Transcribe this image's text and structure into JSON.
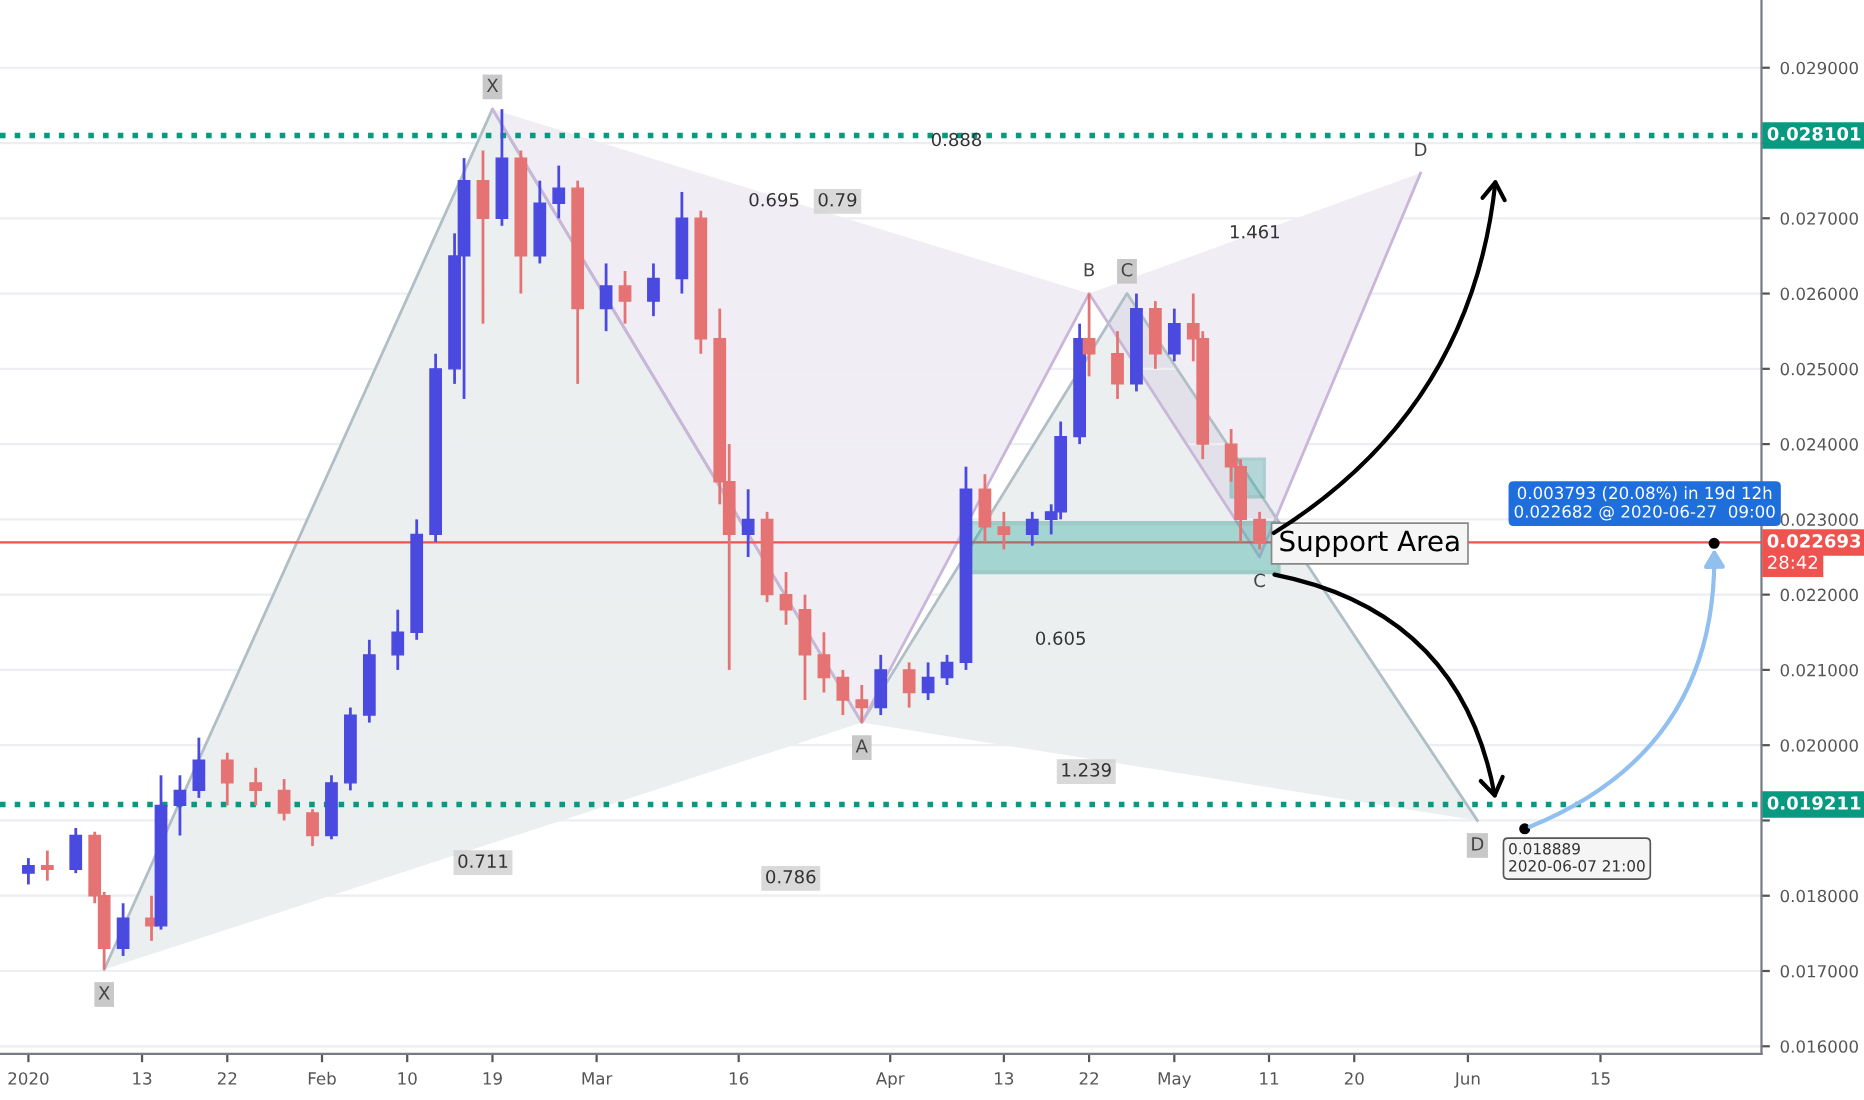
{
  "chart_data": {
    "type": "candlestick",
    "x": [
      "2020-01-01",
      "2020-01-03",
      "2020-01-06",
      "2020-01-08",
      "2020-01-09",
      "2020-01-11",
      "2020-01-14",
      "2020-01-15",
      "2020-01-17",
      "2020-01-19",
      "2020-01-22",
      "2020-01-25",
      "2020-01-28",
      "2020-01-31",
      "2020-02-02",
      "2020-02-04",
      "2020-02-06",
      "2020-02-09",
      "2020-02-11",
      "2020-02-13",
      "2020-02-15",
      "2020-02-16",
      "2020-02-18",
      "2020-02-20",
      "2020-02-22",
      "2020-02-24",
      "2020-02-26",
      "2020-02-28",
      "2020-03-02",
      "2020-03-04",
      "2020-03-07",
      "2020-03-10",
      "2020-03-12",
      "2020-03-14",
      "2020-03-15",
      "2020-03-17",
      "2020-03-19",
      "2020-03-21",
      "2020-03-23",
      "2020-03-25",
      "2020-03-27",
      "2020-03-29",
      "2020-03-31",
      "2020-04-03",
      "2020-04-05",
      "2020-04-07",
      "2020-04-09",
      "2020-04-11",
      "2020-04-13",
      "2020-04-16",
      "2020-04-18",
      "2020-04-19",
      "2020-04-21",
      "2020-04-22",
      "2020-04-25",
      "2020-04-27",
      "2020-04-29",
      "2020-05-01",
      "2020-05-03",
      "2020-05-04",
      "2020-05-07",
      "2020-05-08",
      "2020-05-10"
    ],
    "ohlc": [
      [
        0.0183,
        0.0185,
        0.01815,
        0.0184
      ],
      [
        0.0184,
        0.0186,
        0.0182,
        0.01835
      ],
      [
        0.01835,
        0.0189,
        0.0183,
        0.0188
      ],
      [
        0.0188,
        0.01885,
        0.0179,
        0.018
      ],
      [
        0.018,
        0.01805,
        0.01702,
        0.0173
      ],
      [
        0.0173,
        0.0179,
        0.0172,
        0.0177
      ],
      [
        0.0177,
        0.018,
        0.0174,
        0.0176
      ],
      [
        0.0176,
        0.0196,
        0.01755,
        0.0192
      ],
      [
        0.0192,
        0.0196,
        0.0188,
        0.0194
      ],
      [
        0.0194,
        0.0201,
        0.0193,
        0.0198
      ],
      [
        0.0198,
        0.0199,
        0.0192,
        0.0195
      ],
      [
        0.0195,
        0.0197,
        0.0192,
        0.0194
      ],
      [
        0.0194,
        0.01955,
        0.019,
        0.0191
      ],
      [
        0.0191,
        0.01915,
        0.01866,
        0.0188
      ],
      [
        0.0188,
        0.0196,
        0.01875,
        0.0195
      ],
      [
        0.0195,
        0.0205,
        0.0194,
        0.0204
      ],
      [
        0.0204,
        0.0214,
        0.0203,
        0.0212
      ],
      [
        0.0212,
        0.0218,
        0.021,
        0.0215
      ],
      [
        0.0215,
        0.023,
        0.0214,
        0.0228
      ],
      [
        0.0228,
        0.0252,
        0.0227,
        0.025
      ],
      [
        0.025,
        0.0268,
        0.0248,
        0.0265
      ],
      [
        0.0265,
        0.0278,
        0.0246,
        0.0275
      ],
      [
        0.0275,
        0.0279,
        0.0256,
        0.027
      ],
      [
        0.027,
        0.02845,
        0.0269,
        0.0278
      ],
      [
        0.0278,
        0.0279,
        0.026,
        0.0265
      ],
      [
        0.0265,
        0.0275,
        0.0264,
        0.0272
      ],
      [
        0.0272,
        0.0277,
        0.027,
        0.0274
      ],
      [
        0.0274,
        0.0275,
        0.0248,
        0.0258
      ],
      [
        0.0258,
        0.0264,
        0.0255,
        0.0261
      ],
      [
        0.0261,
        0.0263,
        0.0256,
        0.0259
      ],
      [
        0.0259,
        0.0264,
        0.0257,
        0.0262
      ],
      [
        0.0262,
        0.02735,
        0.026,
        0.027
      ],
      [
        0.027,
        0.0271,
        0.0252,
        0.0254
      ],
      [
        0.0254,
        0.0258,
        0.0232,
        0.0235
      ],
      [
        0.0235,
        0.024,
        0.021,
        0.0228
      ],
      [
        0.0228,
        0.0234,
        0.0225,
        0.023
      ],
      [
        0.023,
        0.0231,
        0.0219,
        0.022
      ],
      [
        0.022,
        0.0223,
        0.0216,
        0.0218
      ],
      [
        0.0218,
        0.022,
        0.0206,
        0.0212
      ],
      [
        0.0212,
        0.0215,
        0.0207,
        0.0209
      ],
      [
        0.0209,
        0.021,
        0.0204,
        0.0206
      ],
      [
        0.0206,
        0.0208,
        0.0203,
        0.0205
      ],
      [
        0.0205,
        0.0212,
        0.0204,
        0.021
      ],
      [
        0.021,
        0.0211,
        0.0205,
        0.0207
      ],
      [
        0.0207,
        0.0211,
        0.0206,
        0.0209
      ],
      [
        0.0209,
        0.0212,
        0.0208,
        0.0211
      ],
      [
        0.0211,
        0.0237,
        0.021,
        0.0234
      ],
      [
        0.0234,
        0.0236,
        0.0227,
        0.0229
      ],
      [
        0.0229,
        0.0231,
        0.0226,
        0.0228
      ],
      [
        0.0228,
        0.0231,
        0.02265,
        0.023
      ],
      [
        0.023,
        0.0232,
        0.0228,
        0.0231
      ],
      [
        0.0231,
        0.0243,
        0.023,
        0.0241
      ],
      [
        0.0241,
        0.0256,
        0.024,
        0.0254
      ],
      [
        0.0254,
        0.026,
        0.0249,
        0.0252
      ],
      [
        0.0252,
        0.0255,
        0.0246,
        0.0248
      ],
      [
        0.0248,
        0.026,
        0.0247,
        0.0258
      ],
      [
        0.0258,
        0.0259,
        0.025,
        0.0252
      ],
      [
        0.0252,
        0.0258,
        0.0251,
        0.0256
      ],
      [
        0.0256,
        0.026,
        0.0251,
        0.0254
      ],
      [
        0.0254,
        0.0255,
        0.0238,
        0.024
      ],
      [
        0.024,
        0.0242,
        0.0235,
        0.0237
      ],
      [
        0.0237,
        0.0238,
        0.0227,
        0.023
      ],
      [
        0.023,
        0.0231,
        0.0226,
        0.02269
      ]
    ],
    "colors": [
      "#4a4ae0",
      "#e57373",
      "#4a4ae0",
      "#e57373",
      "#e57373",
      "#4a4ae0",
      "#e57373",
      "#4a4ae0",
      "#4a4ae0",
      "#4a4ae0",
      "#e57373",
      "#e57373",
      "#e57373",
      "#e57373",
      "#4a4ae0",
      "#4a4ae0",
      "#4a4ae0",
      "#4a4ae0",
      "#4a4ae0",
      "#4a4ae0",
      "#4a4ae0",
      "#4a4ae0",
      "#e57373",
      "#4a4ae0",
      "#e57373",
      "#4a4ae0",
      "#4a4ae0",
      "#e57373",
      "#4a4ae0",
      "#e57373",
      "#4a4ae0",
      "#4a4ae0",
      "#e57373",
      "#e57373",
      "#e57373",
      "#4a4ae0",
      "#e57373",
      "#e57373",
      "#e57373",
      "#e57373",
      "#e57373",
      "#e57373",
      "#4a4ae0",
      "#e57373",
      "#4a4ae0",
      "#4a4ae0",
      "#4a4ae0",
      "#e57373",
      "#e57373",
      "#4a4ae0",
      "#4a4ae0",
      "#4a4ae0",
      "#4a4ae0",
      "#e57373",
      "#e57373",
      "#4a4ae0",
      "#e57373",
      "#4a4ae0",
      "#e57373",
      "#e57373",
      "#e57373",
      "#e57373",
      "#e57373"
    ],
    "series": [
      {
        "type": "line",
        "color": "#b0bec5",
        "x": [
          "2020-01-09",
          "2020-02-19",
          "2020-03-29",
          "2020-04-26",
          "2020-06-02"
        ],
        "values": [
          0.01702,
          0.02845,
          0.0203,
          0.026,
          0.019
        ],
        "value_labels": [
          "X",
          "X",
          "A",
          "C",
          "D"
        ]
      },
      {
        "type": "line",
        "color": "#c9b6d8",
        "x": [
          "2020-02-19",
          "2020-03-29",
          "2020-04-22",
          "2020-05-10",
          "2020-05-27"
        ],
        "values": [
          0.02845,
          0.0203,
          0.026,
          0.0225,
          0.0276
        ],
        "value_labels": [
          null,
          null,
          "B",
          "C",
          "D"
        ]
      }
    ],
    "xlim": [
      "2019-12-29",
      "2020-07-02"
    ],
    "xticks": [
      {
        "value": "2020-01-01",
        "label": "2020"
      },
      {
        "value": "2020-01-13",
        "label": "13"
      },
      {
        "value": "2020-01-22",
        "label": "22"
      },
      {
        "value": "2020-02-01",
        "label": "Feb"
      },
      {
        "value": "2020-02-10",
        "label": "10"
      },
      {
        "value": "2020-02-19",
        "label": "19"
      },
      {
        "value": "2020-03-01",
        "label": "Mar"
      },
      {
        "value": "2020-03-16",
        "label": "16"
      },
      {
        "value": "2020-04-01",
        "label": "Apr"
      },
      {
        "value": "2020-04-13",
        "label": "13"
      },
      {
        "value": "2020-04-22",
        "label": "22"
      },
      {
        "value": "2020-05-01",
        "label": "May"
      },
      {
        "value": "2020-05-11",
        "label": "11"
      },
      {
        "value": "2020-05-20",
        "label": "20"
      },
      {
        "value": "2020-06-01",
        "label": "Jun"
      },
      {
        "value": "2020-06-15",
        "label": "15"
      }
    ],
    "ylim": [
      0.0159,
      0.0299
    ],
    "yticks": [
      {
        "value": 0.016,
        "label": "0.016000"
      },
      {
        "value": 0.017,
        "label": "0.017000"
      },
      {
        "value": 0.018,
        "label": "0.018000"
      },
      {
        "value": 0.019,
        "label": null
      },
      {
        "value": 0.02,
        "label": "0.020000"
      },
      {
        "value": 0.021,
        "label": "0.021000"
      },
      {
        "value": 0.022,
        "label": "0.022000"
      },
      {
        "value": 0.023,
        "label": "0.023000"
      },
      {
        "value": 0.024,
        "label": "0.024000"
      },
      {
        "value": 0.025,
        "label": "0.025000"
      },
      {
        "value": 0.026,
        "label": "0.026000"
      },
      {
        "value": 0.027,
        "label": "0.027000"
      },
      {
        "value": 0.028,
        "label": null
      },
      {
        "value": 0.029,
        "label": "0.029000"
      }
    ],
    "grid": "y",
    "ref_lines": [
      {
        "axis": "y",
        "value": 0.028101,
        "label": "0.028101",
        "color": "#089981",
        "line_style": "dotted"
      },
      {
        "axis": "y",
        "value": 0.019211,
        "label": "0.019211",
        "color": "#089981",
        "line_style": "dotted"
      },
      {
        "axis": "y",
        "value": 0.022693,
        "label": "0.022693",
        "color": "#ef5350",
        "line_style": "solid"
      }
    ],
    "annotations": [
      "0.888",
      "0.695",
      "0.79",
      "1.461",
      "0.605",
      "1.239",
      "0.711",
      "0.786",
      {
        "text": "Support Area",
        "x": "2020-05-12",
        "y": 0.02268
      },
      {
        "text": "0.003793 (20.08%) in 19d 12h\n0.022682 @ 2020-06-27  09:00",
        "x": "2020-06-27",
        "y": 0.022682
      },
      {
        "text": "0.018889\n2020-06-07 21:00",
        "x": "2020-06-07",
        "y": 0.018889
      },
      "28:42"
    ]
  }
}
